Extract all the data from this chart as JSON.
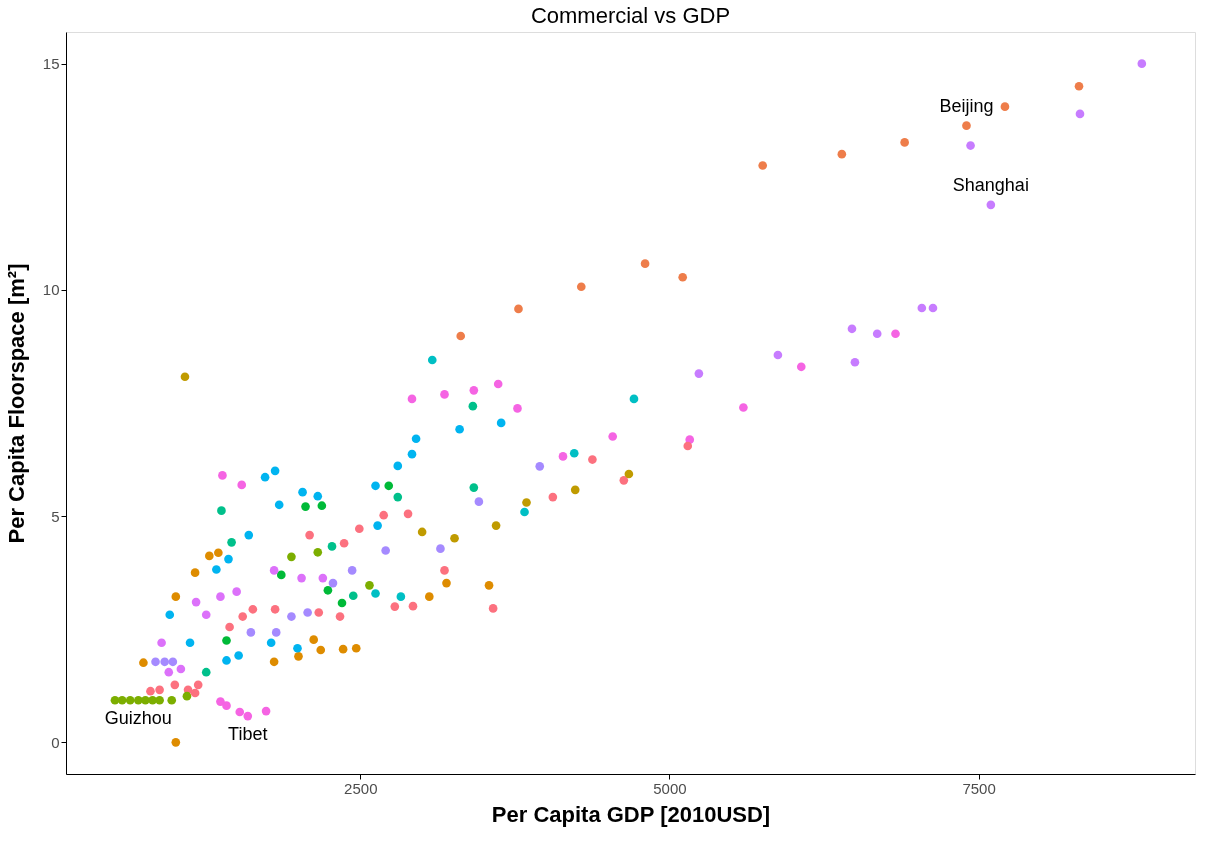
{
  "chart_data": {
    "type": "scatter",
    "title": "Commercial vs GDP",
    "xlabel": "Per Capita GDP [2010USD]",
    "ylabel": "Per Capita Floorspace [m²]",
    "xlim": [
      120,
      9250
    ],
    "ylim": [
      -0.7,
      15.7
    ],
    "xticks": [
      {
        "value": 2500,
        "label": "2500"
      },
      {
        "value": 5000,
        "label": "5000"
      },
      {
        "value": 7500,
        "label": "7500"
      }
    ],
    "yticks": [
      0,
      5,
      10,
      15
    ],
    "grid": false,
    "legend": false,
    "marker": "circle",
    "annotations": [
      {
        "text": "Beijing",
        "x": 7402,
        "y": 13.63
      },
      {
        "text": "Shanghai",
        "x": 7599,
        "y": 11.88
      },
      {
        "text": "Guizhou",
        "x": 705,
        "y": 0.93
      },
      {
        "text": "Tibet",
        "x": 1590,
        "y": 0.58
      }
    ],
    "series": [
      {
        "color": "#ee7d4a",
        "x": [
          3312,
          3779,
          4287,
          4803,
          5107,
          5754,
          6394,
          6902,
          7402,
          7713,
          8312
        ],
        "values": [
          8.98,
          9.58,
          10.07,
          10.58,
          10.28,
          12.75,
          13.0,
          13.26,
          13.63,
          14.05,
          14.5
        ]
      },
      {
        "color": "#c77cff",
        "x": [
          8820,
          8320,
          7435,
          7599,
          7041,
          7131,
          6476,
          6680,
          6500,
          5877,
          5238
        ],
        "values": [
          15.0,
          13.89,
          13.19,
          11.88,
          9.6,
          9.6,
          9.14,
          9.03,
          8.4,
          8.56,
          8.15
        ]
      },
      {
        "color": "#f564e3",
        "x": [
          2918,
          3181,
          3418,
          3615,
          3771,
          4541,
          4139,
          5164,
          6828,
          6066,
          5598,
          1369,
          1418,
          1525,
          1590,
          1738,
          1385,
          1541
        ],
        "values": [
          7.59,
          7.69,
          7.78,
          7.92,
          7.38,
          6.76,
          6.32,
          6.69,
          9.03,
          8.3,
          7.4,
          0.9,
          0.81,
          0.67,
          0.58,
          0.69,
          5.9,
          5.69
        ]
      },
      {
        "color": "#fc717f",
        "x": [
          4377,
          4057,
          4631,
          5148,
          3181,
          2926,
          3574,
          1443,
          1549,
          1631,
          1811,
          2090,
          2369,
          2492,
          2689,
          2886,
          2164,
          2336,
          2779,
          1000,
          803,
          877,
          1107,
          1189,
          1164
        ],
        "values": [
          6.25,
          5.42,
          5.79,
          6.55,
          3.8,
          3.01,
          2.96,
          2.55,
          2.78,
          2.94,
          2.94,
          4.58,
          4.4,
          4.72,
          5.02,
          5.05,
          2.87,
          2.78,
          3.0,
          1.27,
          1.13,
          1.16,
          1.16,
          1.27,
          1.09
        ]
      },
      {
        "color": "#c09b00",
        "x": [
          4672,
          4238,
          3844,
          3598,
          3262,
          3000,
          1082
        ],
        "values": [
          5.93,
          5.58,
          5.3,
          4.79,
          4.51,
          4.65,
          8.08
        ]
      },
      {
        "color": "#de8c00",
        "x": [
          3197,
          3541,
          3058,
          1803,
          2000,
          2123,
          2180,
          2361,
          2467,
          1164,
          1008,
          1279,
          1352,
          746,
          1008
        ],
        "values": [
          3.52,
          3.47,
          3.22,
          1.78,
          1.9,
          2.27,
          2.04,
          2.06,
          2.08,
          3.75,
          3.22,
          4.12,
          4.19,
          1.76,
          0
        ]
      },
      {
        "color": "#7cae00",
        "x": [
          516,
          574,
          639,
          705,
          762,
          820,
          877,
          975,
          1098,
          1943,
          2156,
          2574
        ],
        "values": [
          0.93,
          0.93,
          0.93,
          0.93,
          0.93,
          0.93,
          0.93,
          0.93,
          1.02,
          4.1,
          4.2,
          3.47
        ]
      },
      {
        "color": "#00ba38",
        "x": [
          2057,
          2189,
          2730,
          1861,
          2238,
          2352,
          1418
        ],
        "values": [
          5.21,
          5.23,
          5.67,
          3.7,
          3.36,
          3.08,
          2.25
        ]
      },
      {
        "color": "#00c08b",
        "x": [
          1377,
          2271,
          2443,
          1254,
          1459,
          3410,
          3418,
          2803
        ],
        "values": [
          5.12,
          4.33,
          3.24,
          1.55,
          4.42,
          7.43,
          5.63,
          5.42
        ]
      },
      {
        "color": "#00bfc4",
        "x": [
          3082,
          4713,
          4230,
          3828,
          2828,
          2623
        ],
        "values": [
          8.45,
          7.59,
          6.39,
          5.09,
          3.22,
          3.29
        ]
      },
      {
        "color": "#00b4f0",
        "x": [
          2951,
          2918,
          2803,
          3303,
          3639,
          1730,
          1811,
          2033,
          2156,
          1844,
          2623,
          2640,
          1598,
          1336,
          1434,
          959,
          1123,
          1418,
          1516,
          1992,
          1779
        ],
        "values": [
          6.71,
          6.37,
          6.11,
          6.92,
          7.06,
          5.86,
          6.0,
          5.53,
          5.44,
          5.25,
          5.67,
          4.79,
          4.58,
          3.82,
          4.05,
          2.82,
          2.2,
          1.81,
          1.92,
          2.08,
          2.2
        ]
      },
      {
        "color": "#a58aff",
        "x": [
          2705,
          2434,
          2279,
          1943,
          2074,
          1615,
          1820,
          918,
          984,
          844,
          3951,
          3459,
          3148
        ],
        "values": [
          4.24,
          3.8,
          3.52,
          2.78,
          2.87,
          2.43,
          2.43,
          1.78,
          1.78,
          1.78,
          6.1,
          5.32,
          4.28
        ]
      },
      {
        "color": "#dc71fa",
        "x": [
          1172,
          1254,
          1369,
          1500,
          1803,
          2025,
          2197,
          951,
          1049,
          893
        ],
        "values": [
          3.1,
          2.82,
          3.22,
          3.33,
          3.8,
          3.63,
          3.63,
          1.55,
          1.62,
          2.2
        ]
      }
    ]
  }
}
